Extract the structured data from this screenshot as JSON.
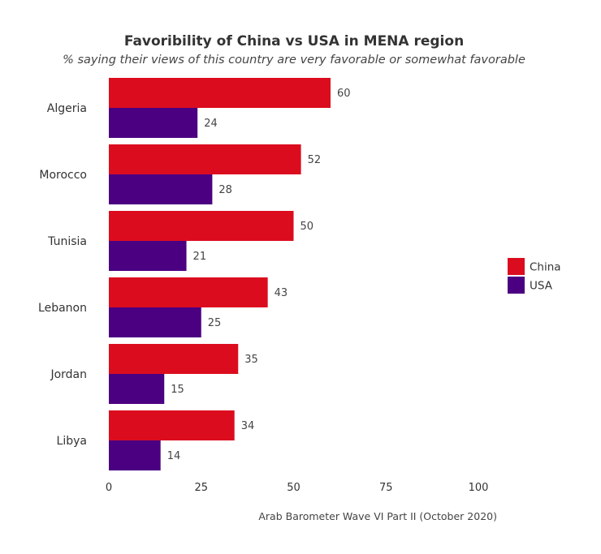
{
  "chart_data": {
    "type": "bar",
    "orientation": "horizontal",
    "title": "Favoribility of China vs USA in MENA region",
    "subtitle": "% saying their views of this country are very favorable or somewhat favorable",
    "categories": [
      "Algeria",
      "Morocco",
      "Tunisia",
      "Lebanon",
      "Jordan",
      "Libya"
    ],
    "series": [
      {
        "name": "China",
        "color": "#dc0c1f",
        "values": [
          60,
          52,
          50,
          43,
          35,
          34
        ]
      },
      {
        "name": "USA",
        "color": "#4b0082",
        "values": [
          24,
          28,
          21,
          25,
          15,
          14
        ]
      }
    ],
    "xlim": [
      0,
      100
    ],
    "xticks": [
      0,
      25,
      50,
      75,
      100
    ],
    "xlabel": "",
    "ylabel": "",
    "grid": false,
    "legend_position": "right",
    "caption": "Arab Barometer Wave VI Part II (October 2020)"
  }
}
